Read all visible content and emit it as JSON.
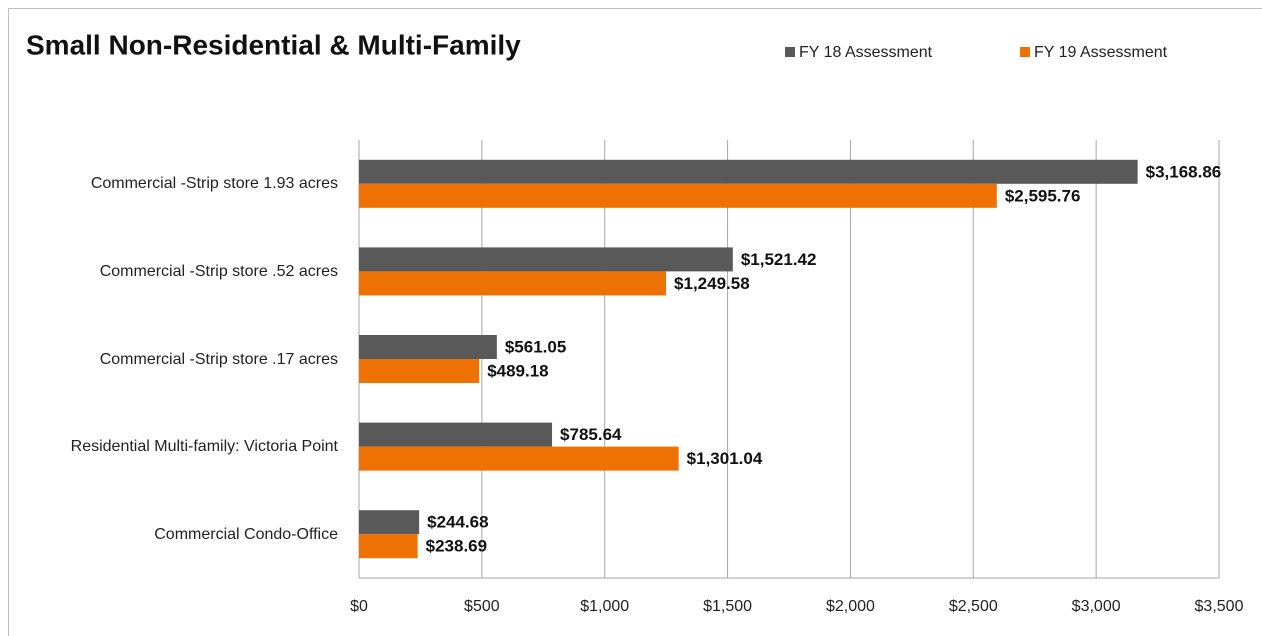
{
  "chart_data": {
    "type": "bar",
    "orientation": "horizontal",
    "title": "Small Non-Residential & Multi-Family",
    "categories": [
      "Commercial -Strip store 1.93 acres",
      "Commercial -Strip store .52 acres",
      "Commercial -Strip store .17 acres",
      "Residential Multi-family: Victoria Point",
      "Commercial Condo-Office"
    ],
    "series": [
      {
        "name": "FY 18 Assessment",
        "color": "#595959",
        "values": [
          3168.86,
          1521.42,
          561.05,
          785.64,
          244.68
        ],
        "value_labels": [
          "$3,168.86",
          "$1,521.42",
          "$561.05",
          "$785.64",
          "$244.68"
        ]
      },
      {
        "name": "FY 19 Assessment",
        "color": "#ee7203",
        "values": [
          2595.76,
          1249.58,
          489.18,
          1301.04,
          238.69
        ],
        "value_labels": [
          "$2,595.76",
          "$1,249.58",
          "$489.18",
          "$1,301.04",
          "$238.69"
        ]
      }
    ],
    "xlim": [
      0,
      3500
    ],
    "xticks": [
      {
        "value": 0,
        "label": "$0"
      },
      {
        "value": 500,
        "label": "$500"
      },
      {
        "value": 1000,
        "label": "$1,000"
      },
      {
        "value": 1500,
        "label": "$1,500"
      },
      {
        "value": 2000,
        "label": "$2,000"
      },
      {
        "value": 2500,
        "label": "$2,500"
      },
      {
        "value": 3000,
        "label": "$3,000"
      },
      {
        "value": 3500,
        "label": "$3,500"
      }
    ],
    "grid": true,
    "legend": "top-right"
  }
}
